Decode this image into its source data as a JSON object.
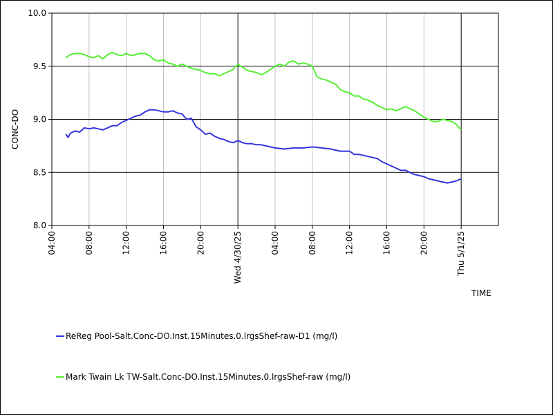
{
  "chart_data": {
    "type": "line",
    "xlabel": "TIME",
    "ylabel": "CONC-DO",
    "ylim": [
      8.0,
      10.0
    ],
    "y_ticks": [
      "8.0",
      "8.5",
      "9.0",
      "9.5",
      "10.0"
    ],
    "x_range_hours": [
      0,
      48
    ],
    "x_ticks": [
      {
        "hour": 0,
        "label": "04:00"
      },
      {
        "hour": 4,
        "label": "08:00"
      },
      {
        "hour": 8,
        "label": "12:00"
      },
      {
        "hour": 12,
        "label": "16:00"
      },
      {
        "hour": 16,
        "label": "20:00"
      },
      {
        "hour": 20,
        "label": "Wed 4/30/25"
      },
      {
        "hour": 24,
        "label": "04:00"
      },
      {
        "hour": 28,
        "label": "08:00"
      },
      {
        "hour": 32,
        "label": "12:00"
      },
      {
        "hour": 36,
        "label": "16:00"
      },
      {
        "hour": 40,
        "label": "20:00"
      },
      {
        "hour": 44,
        "label": "Thu 5/1/25"
      }
    ],
    "grid": true,
    "legend_position": "bottom",
    "series": [
      {
        "name": "ReReg Pool-Salt.Conc-DO.Inst.15Minutes.0.lrgsShef-raw-D1 (mg/l)",
        "color": "#3333dd",
        "x": [
          1.5,
          1.75,
          2.0,
          2.5,
          3.0,
          3.5,
          4.0,
          4.5,
          5.0,
          5.5,
          6.0,
          6.5,
          7.0,
          7.5,
          8.0,
          8.5,
          9.0,
          9.5,
          10.0,
          10.5,
          11.0,
          11.5,
          12.0,
          12.5,
          13.0,
          13.5,
          14.0,
          14.5,
          15.0,
          15.5,
          16.0,
          16.5,
          17.0,
          17.5,
          18.0,
          18.5,
          19.0,
          19.5,
          20.0,
          20.5,
          21.0,
          21.5,
          22.0,
          22.5,
          23.0,
          23.5,
          24.0,
          25.0,
          26.0,
          27.0,
          28.0,
          29.0,
          30.0,
          31.0,
          32.0,
          32.5,
          33.0,
          33.5,
          34.0,
          34.5,
          35.0,
          35.5,
          36.0,
          36.5,
          37.0,
          37.5,
          38.0,
          38.5,
          39.0,
          39.5,
          40.0,
          40.5,
          41.0,
          41.5,
          42.0,
          42.5,
          43.0,
          43.5,
          44.0
        ],
        "y": [
          8.86,
          8.83,
          8.87,
          8.89,
          8.88,
          8.92,
          8.91,
          8.92,
          8.91,
          8.9,
          8.92,
          8.94,
          8.94,
          8.97,
          8.99,
          9.01,
          9.03,
          9.04,
          9.07,
          9.09,
          9.09,
          9.08,
          9.07,
          9.07,
          9.08,
          9.06,
          9.05,
          9.0,
          9.01,
          8.93,
          8.9,
          8.86,
          8.87,
          8.84,
          8.82,
          8.81,
          8.79,
          8.78,
          8.8,
          8.78,
          8.77,
          8.77,
          8.76,
          8.76,
          8.75,
          8.74,
          8.73,
          8.72,
          8.73,
          8.73,
          8.74,
          8.73,
          8.72,
          8.7,
          8.7,
          8.67,
          8.67,
          8.66,
          8.65,
          8.64,
          8.63,
          8.6,
          8.58,
          8.56,
          8.54,
          8.52,
          8.52,
          8.5,
          8.48,
          8.47,
          8.46,
          8.44,
          8.43,
          8.42,
          8.41,
          8.4,
          8.41,
          8.42,
          8.44
        ]
      },
      {
        "name": "Mark Twain Lk TW-Salt.Conc-DO.Inst.15Minutes.0.lrgsShef-raw (mg/l)",
        "color": "#55ee33",
        "x": [
          1.5,
          2.0,
          2.5,
          3.0,
          3.5,
          4.0,
          4.5,
          5.0,
          5.5,
          6.0,
          6.5,
          7.0,
          7.5,
          8.0,
          8.5,
          9.0,
          9.5,
          10.0,
          10.5,
          11.0,
          11.5,
          12.0,
          12.5,
          13.0,
          13.5,
          14.0,
          14.5,
          15.0,
          15.5,
          16.0,
          16.5,
          17.0,
          17.5,
          18.0,
          18.5,
          19.0,
          19.5,
          20.0,
          20.5,
          21.0,
          21.5,
          22.0,
          22.5,
          23.0,
          23.5,
          24.0,
          24.5,
          25.0,
          25.5,
          26.0,
          26.5,
          27.0,
          27.5,
          28.0,
          28.5,
          29.0,
          29.5,
          30.0,
          30.5,
          31.0,
          31.5,
          32.0,
          32.5,
          33.0,
          33.5,
          34.0,
          34.5,
          35.0,
          35.5,
          36.0,
          36.5,
          37.0,
          37.5,
          38.0,
          38.5,
          39.0,
          39.5,
          40.0,
          40.5,
          41.0,
          41.5,
          42.0,
          42.5,
          43.0,
          43.5,
          44.0
        ],
        "y": [
          9.58,
          9.61,
          9.62,
          9.62,
          9.61,
          9.59,
          9.58,
          9.6,
          9.57,
          9.61,
          9.63,
          9.61,
          9.6,
          9.62,
          9.6,
          9.61,
          9.62,
          9.62,
          9.6,
          9.56,
          9.55,
          9.56,
          9.53,
          9.52,
          9.5,
          9.52,
          9.5,
          9.48,
          9.47,
          9.46,
          9.44,
          9.43,
          9.43,
          9.41,
          9.43,
          9.45,
          9.47,
          9.52,
          9.49,
          9.46,
          9.45,
          9.44,
          9.42,
          9.44,
          9.47,
          9.5,
          9.52,
          9.5,
          9.54,
          9.55,
          9.52,
          9.53,
          9.52,
          9.5,
          9.4,
          9.38,
          9.37,
          9.35,
          9.33,
          9.28,
          9.26,
          9.25,
          9.22,
          9.22,
          9.19,
          9.18,
          9.16,
          9.13,
          9.11,
          9.09,
          9.1,
          9.08,
          9.1,
          9.12,
          9.1,
          9.08,
          9.05,
          9.02,
          9.0,
          8.98,
          8.98,
          9.0,
          8.99,
          8.98,
          8.95,
          8.9
        ]
      }
    ]
  }
}
